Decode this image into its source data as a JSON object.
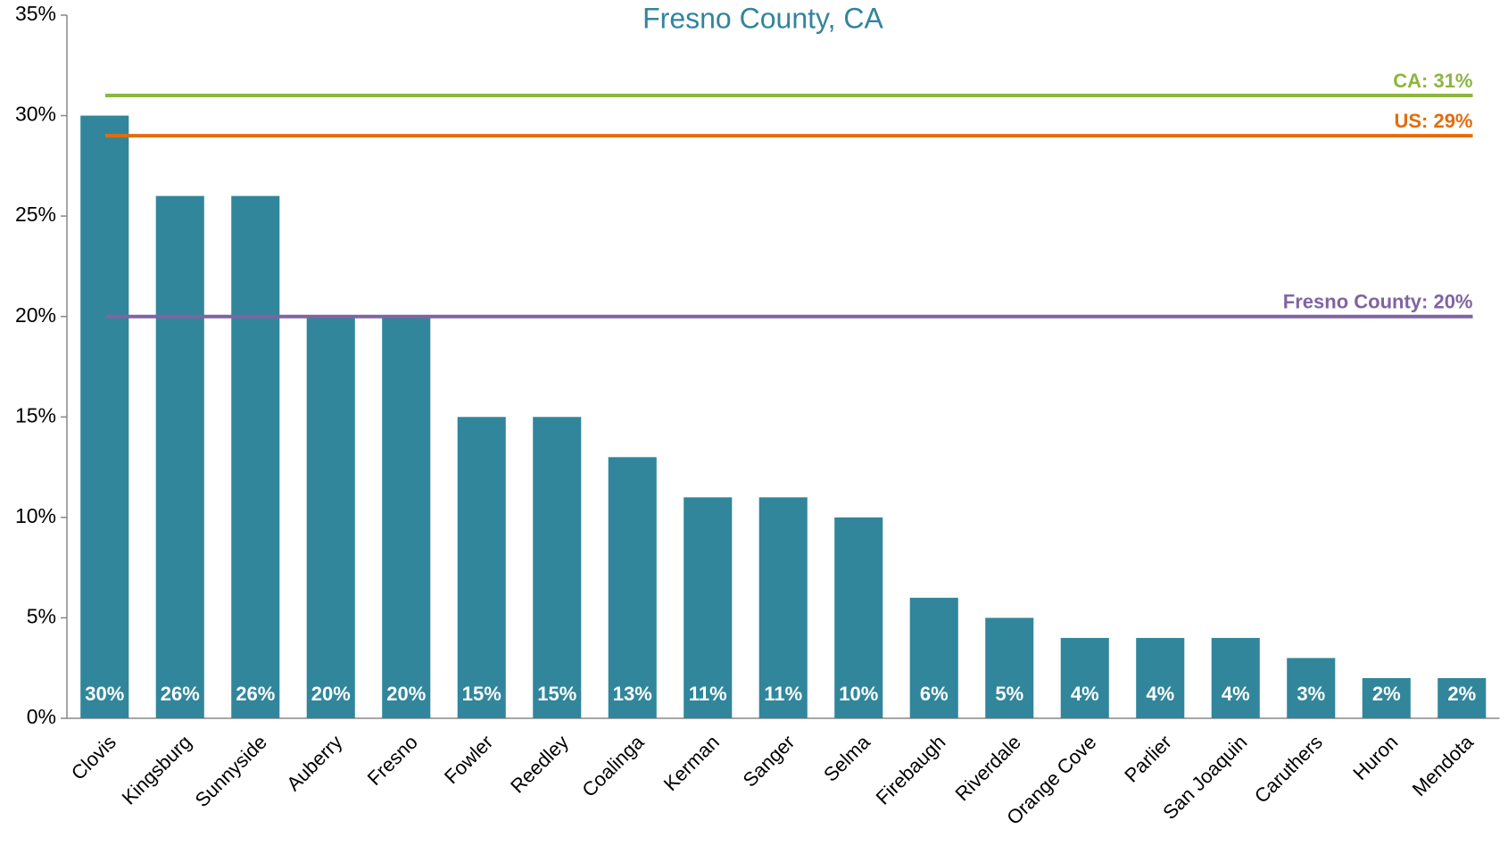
{
  "chart_data": {
    "type": "bar",
    "title": "Fresno County, CA",
    "categories": [
      "Clovis",
      "Kingsburg",
      "Sunnyside",
      "Auberry",
      "Fresno",
      "Fowler",
      "Reedley",
      "Coalinga",
      "Kerman",
      "Sanger",
      "Selma",
      "Firebaugh",
      "Riverdale",
      "Orange Cove",
      "Parlier",
      "San Joaquin",
      "Caruthers",
      "Huron",
      "Mendota"
    ],
    "values": [
      30,
      26,
      26,
      20,
      20,
      15,
      15,
      13,
      11,
      11,
      10,
      6,
      5,
      4,
      4,
      4,
      3,
      2,
      2
    ],
    "value_labels": [
      "30%",
      "26%",
      "26%",
      "20%",
      "20%",
      "15%",
      "15%",
      "13%",
      "11%",
      "11%",
      "10%",
      "6%",
      "5%",
      "4%",
      "4%",
      "4%",
      "3%",
      "2%",
      "2%"
    ],
    "color": "#31869b",
    "ylim": [
      0,
      35
    ],
    "yticks": [
      {
        "value": 0,
        "label": "0%"
      },
      {
        "value": 5,
        "label": "5%"
      },
      {
        "value": 10,
        "label": "10%"
      },
      {
        "value": 15,
        "label": "15%"
      },
      {
        "value": 20,
        "label": "20%"
      },
      {
        "value": 25,
        "label": "25%"
      },
      {
        "value": 30,
        "label": "30%"
      },
      {
        "value": 35,
        "label": "35%"
      }
    ],
    "reference_lines": [
      {
        "label": "CA: 31%",
        "value": 31,
        "color": "#8db53f"
      },
      {
        "label": "US: 29%",
        "value": 29,
        "color": "#e46c0a"
      },
      {
        "label": "Fresno County: 20%",
        "value": 20,
        "color": "#8064a2"
      }
    ]
  }
}
